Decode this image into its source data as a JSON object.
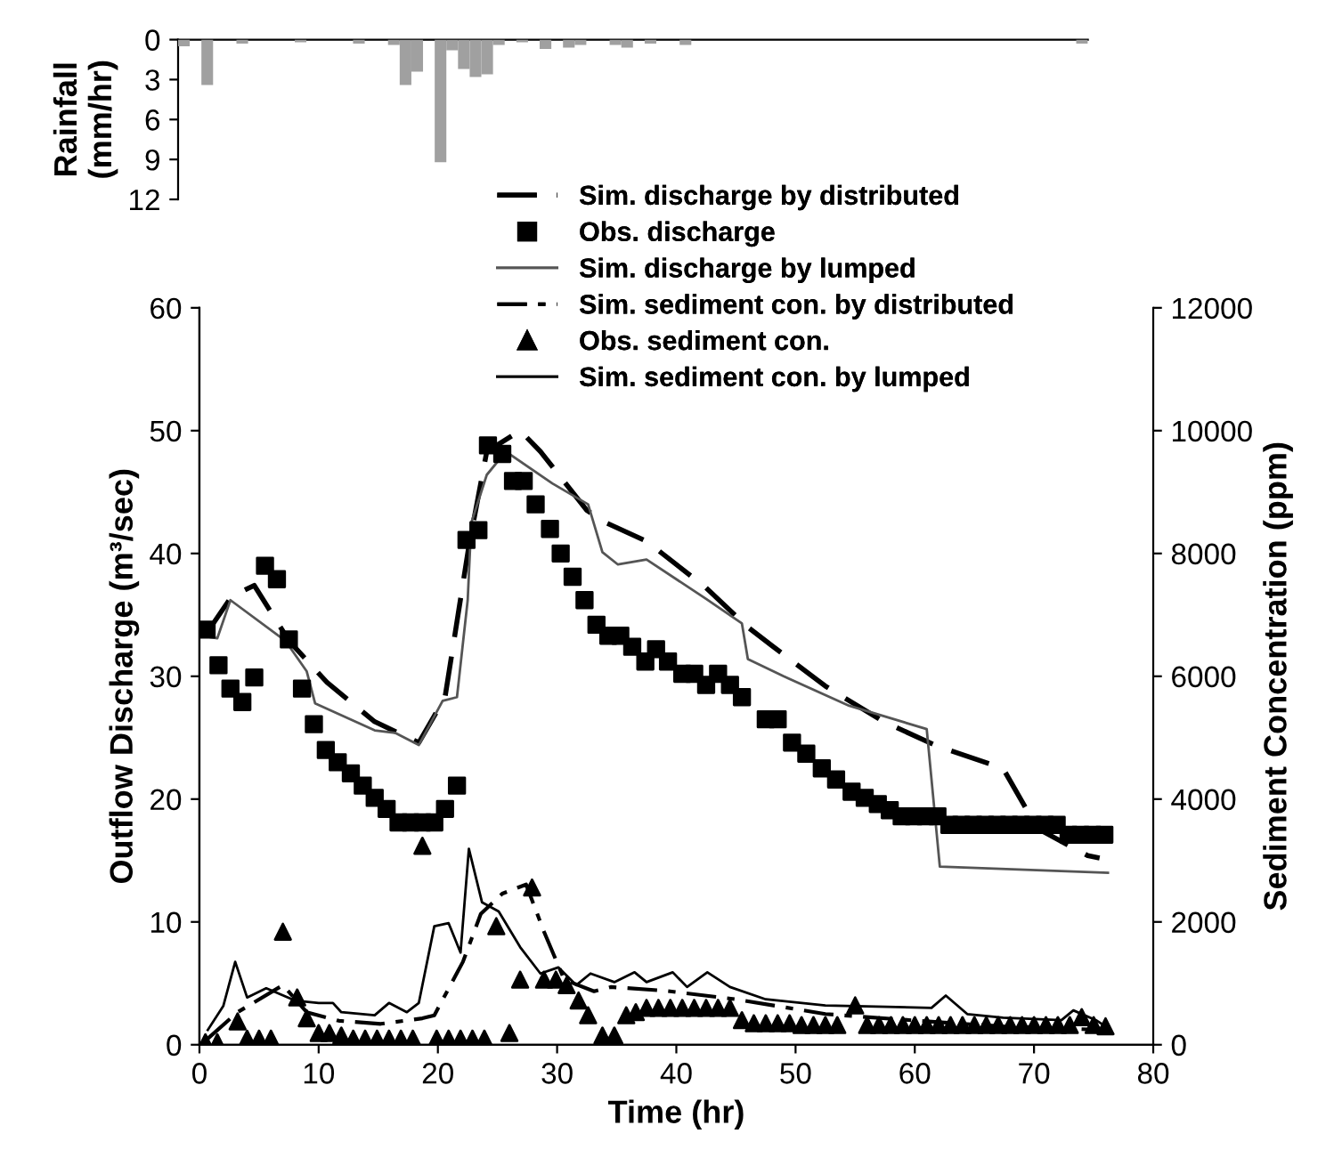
{
  "chart_data": [
    {
      "type": "bar",
      "ylabel": "Rainfall\n(mm/hr)",
      "categories": [
        null,
        null,
        null,
        null,
        null,
        null,
        null,
        null,
        null,
        null,
        null,
        null,
        null,
        null,
        null,
        null,
        null,
        null,
        null,
        null,
        null,
        null,
        null,
        null,
        null,
        null,
        null,
        null,
        null,
        null,
        null,
        null,
        null,
        null,
        null,
        null,
        null,
        null,
        null,
        null,
        null,
        null,
        null,
        null,
        null,
        null,
        null,
        null,
        null,
        null,
        null,
        null,
        null,
        null,
        null,
        null,
        null,
        null,
        null,
        null,
        null,
        null,
        null,
        null,
        null,
        null,
        null,
        null,
        null,
        null,
        null,
        null,
        null,
        null,
        null,
        null,
        null,
        null
      ],
      "values": [
        0.5,
        0,
        3.4,
        0,
        0,
        0.3,
        0,
        0,
        0,
        0,
        0.2,
        0,
        0,
        0,
        0,
        0.3,
        0,
        0,
        0.4,
        3.4,
        2.4,
        0,
        9.2,
        0.8,
        2.2,
        2.8,
        2.6,
        0.4,
        0,
        0.2,
        0,
        0.7,
        0,
        0.6,
        0.4,
        0,
        0,
        0.4,
        0.6,
        0,
        0.3,
        0,
        0,
        0.4,
        0,
        0,
        0,
        0,
        0,
        0,
        0,
        0,
        0,
        0,
        0,
        0,
        0,
        0,
        0,
        0,
        0,
        0,
        0,
        0,
        0,
        0,
        0,
        0,
        0,
        0,
        0,
        0,
        0,
        0,
        0,
        0,
        0,
        0.3
      ],
      "color": "#a0a0a0",
      "ylim": [
        12,
        0
      ],
      "yticks": [
        0,
        3,
        6,
        9,
        12
      ]
    },
    {
      "type": "line",
      "xlabel": "Time (hr)",
      "ylabel": "Outflow Discharge (m³/sec)",
      "y2label": "Sediment Concentration (ppm)",
      "xlim": [
        0,
        80
      ],
      "xticks": [
        0,
        10,
        20,
        30,
        40,
        50,
        60,
        70,
        80
      ],
      "ylim": [
        0,
        60
      ],
      "yticks": [
        0,
        10,
        20,
        30,
        40,
        50,
        60
      ],
      "y2lim": [
        0,
        12000
      ],
      "y2ticks": [
        0,
        2000,
        4000,
        6000,
        8000,
        10000,
        12000
      ],
      "legend": "top right",
      "series": [
        {
          "name": "Sim. discharge by distributed",
          "type": "line",
          "line_style": "dashed",
          "color": "#000000",
          "x": [
            0.6,
            2.7,
            4.6,
            7.5,
            10.7,
            14.7,
            18.4,
            20.6,
            22.6,
            24.1,
            26.9,
            28.6,
            32.5,
            34.1,
            37.5,
            42.5,
            46.0,
            48.0,
            52.5,
            57.4,
            61.9,
            67.4,
            70.3,
            74.5,
            75.5
          ],
          "values": [
            33.5,
            36.5,
            37.4,
            32.9,
            29.5,
            26.3,
            24.6,
            28.3,
            40.6,
            48.3,
            50.0,
            48.3,
            43.5,
            42.5,
            41.0,
            37.2,
            34.0,
            32.5,
            29.2,
            26.3,
            24.3,
            22.5,
            17.6,
            15.4,
            15.2
          ]
        },
        {
          "name": "Obs. discharge",
          "type": "scatter",
          "marker": "square",
          "color": "#000000",
          "x": [
            0.6,
            1.6,
            2.6,
            3.6,
            4.6,
            5.5,
            6.5,
            7.5,
            8.6,
            9.6,
            10.6,
            11.6,
            12.7,
            13.7,
            14.7,
            15.7,
            16.7,
            17.7,
            18.7,
            19.7,
            20.6,
            21.6,
            22.4,
            23.4,
            24.2,
            25.4,
            26.3,
            27.2,
            28.2,
            29.4,
            30.3,
            31.3,
            32.3,
            33.3,
            34.3,
            35.3,
            36.3,
            37.4,
            38.3,
            39.3,
            40.5,
            41.5,
            42.5,
            43.5,
            44.5,
            45.5,
            47.5,
            48.5,
            49.7,
            50.9,
            52.2,
            53.4,
            54.7,
            55.8,
            56.9,
            57.9,
            58.9,
            59.9,
            60.9,
            61.9,
            62.9,
            63.9,
            64.9,
            65.9,
            66.9,
            67.9,
            68.9,
            69.9,
            70.9,
            71.9,
            72.9,
            73.9,
            74.9,
            75.9
          ],
          "values": [
            33.8,
            30.9,
            29.0,
            27.9,
            29.9,
            39.0,
            37.9,
            33.0,
            29.0,
            26.1,
            24.0,
            23.0,
            22.1,
            21.1,
            20.1,
            19.2,
            18.1,
            18.1,
            18.1,
            18.1,
            19.2,
            21.1,
            41.1,
            41.9,
            48.8,
            48.1,
            45.9,
            45.9,
            44.0,
            42.0,
            40.0,
            38.1,
            36.2,
            34.2,
            33.3,
            33.3,
            32.4,
            31.2,
            32.2,
            31.2,
            30.2,
            30.2,
            29.3,
            30.2,
            29.3,
            28.3,
            26.5,
            26.5,
            24.6,
            23.7,
            22.5,
            21.6,
            20.6,
            20.1,
            19.6,
            19.1,
            18.6,
            18.6,
            18.6,
            18.6,
            17.9,
            17.9,
            17.9,
            17.9,
            17.9,
            17.9,
            17.9,
            17.9,
            17.9,
            17.9,
            17.1,
            17.1,
            17.1,
            17.1
          ]
        },
        {
          "name": "Sim. discharge by lumped",
          "type": "line",
          "line_style": "solid",
          "color": "#555555",
          "x": [
            0.2,
            1.5,
            2.6,
            7.2,
            9.0,
            9.7,
            14.7,
            16.4,
            18.4,
            20.4,
            21.6,
            22.5,
            22.8,
            24.1,
            25.7,
            29.6,
            32.6,
            33.8,
            35.1,
            37.5,
            42.5,
            45.5,
            46.0,
            49.0,
            54.5,
            61.0,
            62.1,
            76.2
          ],
          "values": [
            33.3,
            33.1,
            36.2,
            32.9,
            30.4,
            27.8,
            25.6,
            25.4,
            24.4,
            28.0,
            28.3,
            36.2,
            42.5,
            46.4,
            48.3,
            45.7,
            44.0,
            40.1,
            39.1,
            39.5,
            36.3,
            34.3,
            31.4,
            30.0,
            27.6,
            25.7,
            14.5,
            14.0
          ]
        },
        {
          "name": "Sim. sediment con. by distributed",
          "type": "line",
          "axis": "y2",
          "line_style": "dashdot",
          "color": "#000000",
          "x": [
            0.7,
            3.2,
            7.0,
            9.0,
            11.7,
            15.2,
            18.7,
            19.7,
            22.1,
            23.6,
            25.4,
            27.4,
            28.9,
            30.6,
            33.1,
            34.5,
            39.0,
            45.0,
            52.5,
            62.5,
            67.4,
            76.0
          ],
          "values": [
            100,
            530,
            970,
            530,
            390,
            340,
            430,
            480,
            1350,
            2130,
            2460,
            2610,
            1840,
            1060,
            870,
            940,
            880,
            740,
            500,
            360,
            300,
            240
          ]
        },
        {
          "name": "Obs. sediment con.",
          "type": "scatter",
          "axis": "y2",
          "marker": "triangle",
          "color": "#000000",
          "x": [
            0.5,
            1.5,
            3.2,
            4.0,
            5.0,
            6.0,
            7.0,
            8.2,
            9.0,
            10.0,
            10.9,
            11.9,
            12.9,
            13.9,
            14.9,
            15.9,
            16.9,
            17.9,
            18.7,
            19.9,
            20.9,
            21.9,
            22.9,
            23.9,
            24.9,
            26.0,
            26.9,
            27.9,
            28.9,
            29.9,
            30.8,
            31.8,
            32.6,
            33.8,
            34.8,
            35.8,
            36.6,
            37.5,
            38.5,
            39.5,
            40.5,
            41.5,
            42.5,
            43.5,
            44.5,
            45.5,
            46.5,
            47.5,
            48.5,
            49.5,
            50.5,
            51.5,
            52.5,
            53.5,
            55.0,
            56.0,
            57.0,
            58.0,
            59.0,
            60.0,
            61.0,
            62.0,
            63.0,
            64.0,
            65.0,
            66.0,
            67.0,
            68.0,
            69.0,
            70.0,
            71.0,
            72.0,
            73.0,
            74.0,
            75.0,
            76.0
          ],
          "values": [
            40,
            40,
            380,
            100,
            100,
            100,
            1840,
            770,
            430,
            190,
            190,
            150,
            100,
            100,
            100,
            100,
            100,
            100,
            3240,
            100,
            100,
            100,
            100,
            100,
            1930,
            190,
            1060,
            2560,
            1060,
            1060,
            970,
            720,
            480,
            150,
            150,
            480,
            530,
            600,
            600,
            600,
            600,
            600,
            600,
            600,
            600,
            400,
            350,
            350,
            350,
            350,
            320,
            320,
            320,
            320,
            640,
            320,
            320,
            320,
            320,
            320,
            320,
            320,
            320,
            320,
            320,
            320,
            320,
            320,
            320,
            320,
            320,
            320,
            320,
            450,
            320,
            300
          ]
        },
        {
          "name": "Sim. sediment con. by lumped",
          "type": "line",
          "axis": "y2",
          "line_style": "solid",
          "color": "#000000",
          "x": [
            0.7,
            2.0,
            3.0,
            4.0,
            5.6,
            8.0,
            10.0,
            11.2,
            11.9,
            14.7,
            15.9,
            17.4,
            18.4,
            19.7,
            20.9,
            21.9,
            22.6,
            23.7,
            25.1,
            26.9,
            28.6,
            30.1,
            31.6,
            32.8,
            34.8,
            36.5,
            37.5,
            39.7,
            40.9,
            42.6,
            44.5,
            47.5,
            52.5,
            61.4,
            62.6,
            64.4,
            67.4,
            72.3,
            73.3,
            75.2,
            76.0
          ],
          "values": [
            240,
            630,
            1350,
            770,
            920,
            720,
            680,
            680,
            530,
            480,
            680,
            530,
            680,
            1930,
            1980,
            1500,
            3190,
            2320,
            2170,
            1590,
            1160,
            1260,
            970,
            1160,
            1020,
            1180,
            1020,
            1180,
            940,
            1180,
            940,
            740,
            640,
            600,
            800,
            500,
            440,
            400,
            560,
            400,
            300
          ]
        }
      ]
    }
  ]
}
